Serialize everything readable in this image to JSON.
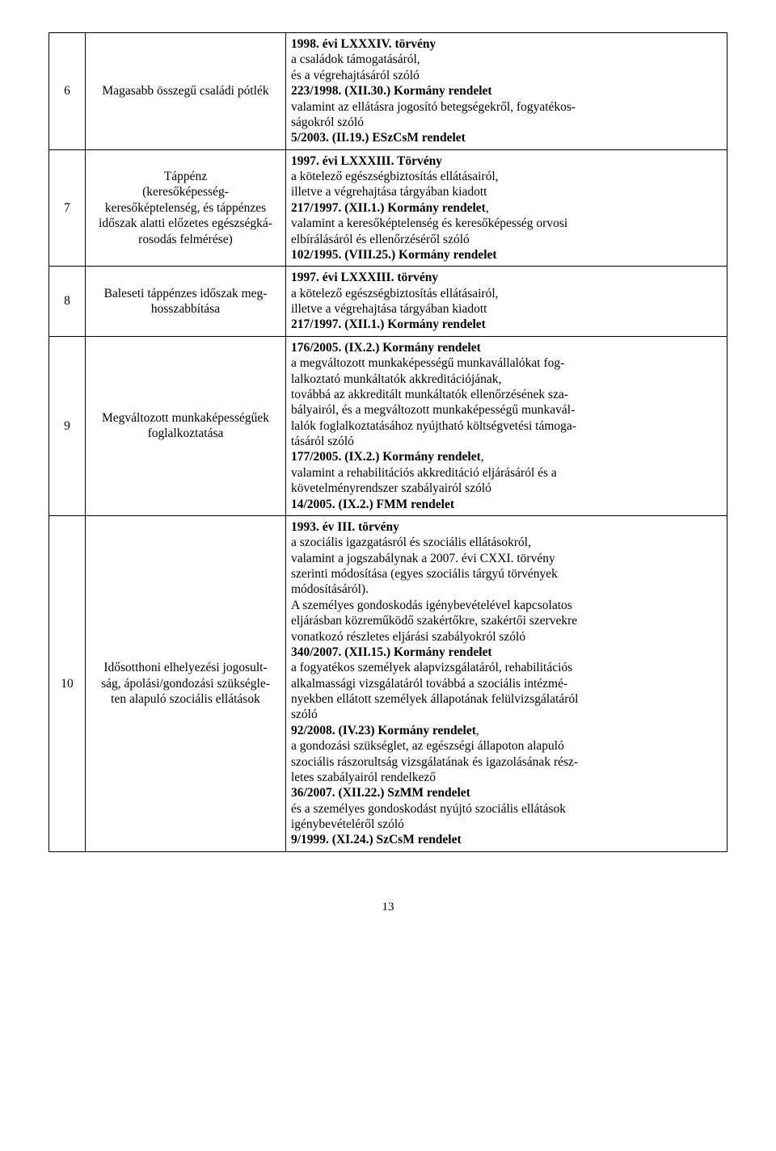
{
  "page_number": "13",
  "table": {
    "col_widths": {
      "num": 32,
      "desc": 235
    },
    "rows": [
      {
        "num": "6",
        "desc": "Magasabb összegű családi pótlék",
        "law_html": "<b>1998. évi LXXXIV. törvény</b><br>a családok támogatásáról,<br>és a végrehajtásáról szóló<br><b>223/1998. (XII.30.) Kormány rendelet</b><br>valamint az ellátásra jogosító betegségekről, fogyatékos-<br>ságokról szóló<br><b>5/2003. (II.19.) ESzCsM rendelet</b>"
      },
      {
        "num": "7",
        "desc": "Táppénz<br>(keresőképesség-<br>keresőképtelenség, és táppénzes<br>időszak alatti előzetes egészségká-<br>rosodás felmérése)",
        "law_html": "<b>1997. évi LXXXIII. Törvény</b><br>a kötelező egészségbiztosítás ellátásairól,<br>illetve a végrehajtása tárgyában kiadott<br><b>217/1997. (XII.1.) Kormány rendelet</b>,<br>valamint a keresőképtelenség és keresőképesség orvosi<br>elbírálásáról és ellenőrzéséről szóló<br><b>102/1995. (VIII.25.) Kormány rendelet</b>"
      },
      {
        "num": "8",
        "desc": "Baleseti táppénzes időszak meg-<br>hosszabbítása",
        "law_html": "<b>1997. évi LXXXIII. törvény</b><br>a kötelező egészségbiztosítás ellátásairól,<br>illetve a végrehajtása tárgyában kiadott<br><b>217/1997. (XII.1.) Kormány rendelet</b>"
      },
      {
        "num": "9",
        "desc": "Megváltozott munkaképességűek<br>foglalkoztatása",
        "law_html": "<b>176/2005. (IX.2.) Kormány rendelet</b><br>a megváltozott munkaképességű munkavállalókat fog-<br>lalkoztató munkáltatók akkreditációjának,<br>továbbá az akkreditált munkáltatók ellenőrzésének sza-<br>bályairól, és a megváltozott munkaképességű munkavál-<br>lalók foglalkoztatásához nyújtható költségvetési támoga-<br>tásáról szóló<br><b>177/2005. (IX.2.) Kormány rendelet</b>,<br>valamint a rehabilitációs akkreditáció eljárásáról és a<br>követelményrendszer szabályairól szóló<br><b>14/2005. (IX.2.) FMM rendelet</b>"
      },
      {
        "num": "10",
        "desc": "Idősotthoni elhelyezési jogosult-<br>ság, ápolási/gondozási szükségle-<br>ten alapuló szociális ellátások",
        "law_html": "<b>1993. év III. törvény</b><br>a szociális igazgatásról és szociális ellátásokról,<br>valamint a jogszabálynak a 2007. évi CXXI. törvény<br>szerinti módosítása (egyes szociális tárgyú törvények<br>módosításáról).<br>A személyes gondoskodás igénybevételével kapcsolatos<br>eljárásban közreműködő szakértőkre, szakértői szervekre<br>vonatkozó részletes eljárási szabályokról szóló<br><b>340/2007. (XII.15.) Kormány rendelet</b><br>a fogyatékos személyek alapvizsgálatáról, rehabilitációs<br>alkalmassági vizsgálatáról továbbá a szociális intézmé-<br>nyekben ellátott személyek állapotának felülvizsgálatáról<br>szóló<br><b>92/2008. (IV.23) Kormány rendelet</b>,<br>a gondozási szükséglet, az egészségi állapoton alapuló<br>szociális rászorultság vizsgálatának és igazolásának rész-<br>letes szabályairól rendelkező<br><b>36/2007. (XII.22.) SzMM rendelet</b><br>és a személyes gondoskodást nyújtó szociális ellátások<br>igénybevételéről szóló<br><b>9/1999. (XI.24.) SzCsM rendelet</b>"
      }
    ]
  }
}
